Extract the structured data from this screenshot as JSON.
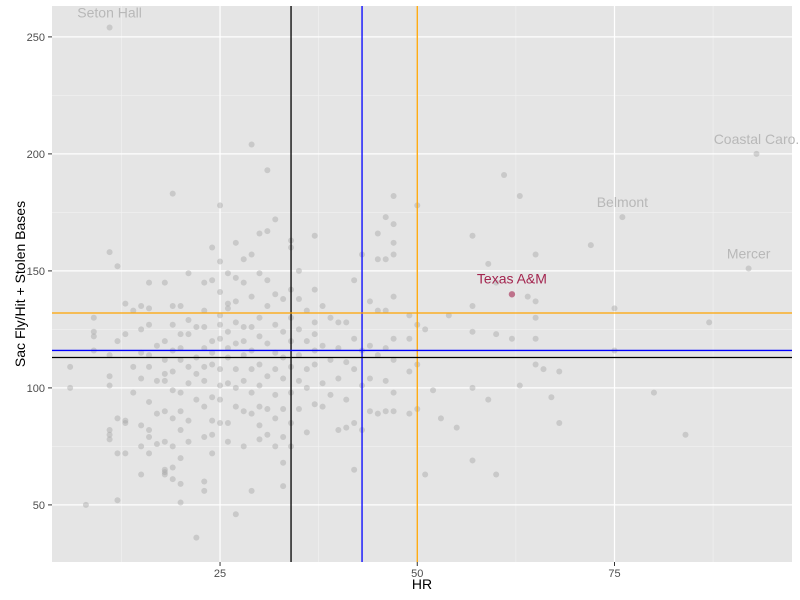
{
  "chart_data": {
    "type": "scatter",
    "title": "",
    "xlabel": "HR",
    "ylabel": "Sac Fly/Hit + Stolen Bases",
    "xlim": [
      3.7,
      97.5
    ],
    "ylim": [
      25.6,
      263.2
    ],
    "x_ticks": [
      25,
      50,
      75
    ],
    "y_ticks": [
      50,
      100,
      150,
      200,
      250
    ],
    "grid": true,
    "colors": {
      "panel_bg": "#e5e5e5",
      "grid_major": "#ffffff",
      "grid_minor": "#f2f2f2",
      "point": "#a6a6a6",
      "label_muted": "#b8b8b8",
      "highlight": "#a3254f"
    },
    "reference_lines": {
      "vertical": [
        {
          "name": "black",
          "x": 34,
          "color": "#000000"
        },
        {
          "name": "blue",
          "x": 43,
          "color": "#0000ff"
        },
        {
          "name": "orange",
          "x": 50,
          "color": "#ffa500"
        }
      ],
      "horizontal": [
        {
          "name": "orange",
          "y": 132,
          "color": "#ffa500"
        },
        {
          "name": "blue",
          "y": 116,
          "color": "#0000ff"
        },
        {
          "name": "black",
          "y": 113,
          "color": "#000000"
        }
      ]
    },
    "highlight": {
      "label": "Texas A&M",
      "x": 62,
      "y": 140
    },
    "labels": [
      {
        "text": "Seton Hall",
        "x": 11,
        "y": 254
      },
      {
        "text": "Coastal Caro.",
        "x": 93,
        "y": 200
      },
      {
        "text": "Belmont",
        "x": 76,
        "y": 173
      },
      {
        "text": "Mercer",
        "x": 92,
        "y": 151
      }
    ],
    "points": [
      [
        11,
        254
      ],
      [
        93,
        200
      ],
      [
        76,
        173
      ],
      [
        92,
        151
      ],
      [
        6,
        109
      ],
      [
        6,
        100
      ],
      [
        8,
        50
      ],
      [
        9,
        130
      ],
      [
        9,
        124
      ],
      [
        9,
        122
      ],
      [
        9,
        116
      ],
      [
        11,
        158
      ],
      [
        11,
        114
      ],
      [
        11,
        105
      ],
      [
        11,
        101
      ],
      [
        11,
        82
      ],
      [
        11,
        80
      ],
      [
        11,
        78
      ],
      [
        12,
        152
      ],
      [
        12,
        120
      ],
      [
        12,
        87
      ],
      [
        12,
        72
      ],
      [
        12,
        52
      ],
      [
        13,
        136
      ],
      [
        13,
        123
      ],
      [
        13,
        86
      ],
      [
        13,
        85
      ],
      [
        13,
        72
      ],
      [
        14,
        133
      ],
      [
        14,
        109
      ],
      [
        14,
        98
      ],
      [
        15,
        135
      ],
      [
        15,
        125
      ],
      [
        15,
        115
      ],
      [
        15,
        104
      ],
      [
        15,
        84
      ],
      [
        15,
        75
      ],
      [
        15,
        63
      ],
      [
        16,
        145
      ],
      [
        16,
        134
      ],
      [
        16,
        127
      ],
      [
        16,
        114
      ],
      [
        16,
        109
      ],
      [
        16,
        94
      ],
      [
        16,
        82
      ],
      [
        16,
        79
      ],
      [
        16,
        72
      ],
      [
        17,
        118
      ],
      [
        17,
        103
      ],
      [
        17,
        89
      ],
      [
        17,
        76
      ],
      [
        18,
        145
      ],
      [
        18,
        120
      ],
      [
        18,
        112
      ],
      [
        18,
        106
      ],
      [
        18,
        103
      ],
      [
        18,
        90
      ],
      [
        18,
        77
      ],
      [
        18,
        65
      ],
      [
        18,
        64
      ],
      [
        18,
        63
      ],
      [
        19,
        183
      ],
      [
        19,
        135
      ],
      [
        19,
        127
      ],
      [
        19,
        116
      ],
      [
        19,
        107
      ],
      [
        19,
        99
      ],
      [
        19,
        87
      ],
      [
        19,
        75
      ],
      [
        19,
        66
      ],
      [
        19,
        61
      ],
      [
        20,
        135
      ],
      [
        20,
        123
      ],
      [
        20,
        117
      ],
      [
        20,
        112
      ],
      [
        20,
        98
      ],
      [
        20,
        90
      ],
      [
        20,
        82
      ],
      [
        20,
        70
      ],
      [
        20,
        59
      ],
      [
        20,
        51
      ],
      [
        21,
        149
      ],
      [
        21,
        129
      ],
      [
        21,
        123
      ],
      [
        21,
        109
      ],
      [
        21,
        102
      ],
      [
        21,
        86
      ],
      [
        21,
        77
      ],
      [
        22,
        126
      ],
      [
        22,
        113
      ],
      [
        22,
        106
      ],
      [
        22,
        95
      ],
      [
        22,
        36
      ],
      [
        23,
        145
      ],
      [
        23,
        133
      ],
      [
        23,
        126
      ],
      [
        23,
        117
      ],
      [
        23,
        109
      ],
      [
        23,
        103
      ],
      [
        23,
        92
      ],
      [
        23,
        79
      ],
      [
        23,
        60
      ],
      [
        23,
        56
      ],
      [
        24,
        160
      ],
      [
        24,
        146
      ],
      [
        24,
        120
      ],
      [
        24,
        115
      ],
      [
        24,
        110
      ],
      [
        24,
        96
      ],
      [
        24,
        86
      ],
      [
        24,
        80
      ],
      [
        24,
        72
      ],
      [
        25,
        178
      ],
      [
        25,
        154
      ],
      [
        25,
        141
      ],
      [
        25,
        131
      ],
      [
        25,
        127
      ],
      [
        25,
        121
      ],
      [
        25,
        108
      ],
      [
        25,
        101
      ],
      [
        25,
        95
      ],
      [
        25,
        85
      ],
      [
        26,
        149
      ],
      [
        26,
        136
      ],
      [
        26,
        134
      ],
      [
        26,
        124
      ],
      [
        26,
        117
      ],
      [
        26,
        113
      ],
      [
        26,
        102
      ],
      [
        26,
        85
      ],
      [
        26,
        77
      ],
      [
        27,
        162
      ],
      [
        27,
        147
      ],
      [
        27,
        137
      ],
      [
        27,
        128
      ],
      [
        27,
        119
      ],
      [
        27,
        108
      ],
      [
        27,
        100
      ],
      [
        27,
        92
      ],
      [
        27,
        46
      ],
      [
        28,
        155
      ],
      [
        28,
        145
      ],
      [
        28,
        126
      ],
      [
        28,
        120
      ],
      [
        28,
        114
      ],
      [
        28,
        103
      ],
      [
        28,
        90
      ],
      [
        28,
        75
      ],
      [
        29,
        204
      ],
      [
        29,
        157
      ],
      [
        29,
        139
      ],
      [
        29,
        126
      ],
      [
        29,
        116
      ],
      [
        29,
        108
      ],
      [
        29,
        98
      ],
      [
        29,
        89
      ],
      [
        29,
        56
      ],
      [
        30,
        166
      ],
      [
        30,
        149
      ],
      [
        30,
        130
      ],
      [
        30,
        122
      ],
      [
        30,
        110
      ],
      [
        30,
        101
      ],
      [
        30,
        92
      ],
      [
        30,
        84
      ],
      [
        30,
        78
      ],
      [
        31,
        193
      ],
      [
        31,
        167
      ],
      [
        31,
        146
      ],
      [
        31,
        135
      ],
      [
        31,
        119
      ],
      [
        31,
        105
      ],
      [
        31,
        91
      ],
      [
        31,
        80
      ],
      [
        32,
        172
      ],
      [
        32,
        140
      ],
      [
        32,
        127
      ],
      [
        32,
        115
      ],
      [
        32,
        108
      ],
      [
        32,
        97
      ],
      [
        32,
        87
      ],
      [
        32,
        75
      ],
      [
        33,
        138
      ],
      [
        33,
        124
      ],
      [
        33,
        113
      ],
      [
        33,
        104
      ],
      [
        33,
        91
      ],
      [
        33,
        79
      ],
      [
        33,
        68
      ],
      [
        33,
        58
      ],
      [
        34,
        163
      ],
      [
        34,
        160
      ],
      [
        34,
        142
      ],
      [
        34,
        130
      ],
      [
        34,
        120
      ],
      [
        34,
        109
      ],
      [
        34,
        98
      ],
      [
        34,
        85
      ],
      [
        34,
        75
      ],
      [
        35,
        150
      ],
      [
        35,
        138
      ],
      [
        35,
        125
      ],
      [
        35,
        114
      ],
      [
        35,
        103
      ],
      [
        35,
        91
      ],
      [
        36,
        133
      ],
      [
        36,
        120
      ],
      [
        36,
        108
      ],
      [
        36,
        100
      ],
      [
        36,
        81
      ],
      [
        37,
        165
      ],
      [
        37,
        142
      ],
      [
        37,
        128
      ],
      [
        37,
        123
      ],
      [
        37,
        116
      ],
      [
        37,
        110
      ],
      [
        37,
        93
      ],
      [
        38,
        135
      ],
      [
        38,
        118
      ],
      [
        38,
        102
      ],
      [
        38,
        92
      ],
      [
        39,
        130
      ],
      [
        39,
        112
      ],
      [
        39,
        97
      ],
      [
        40,
        128
      ],
      [
        40,
        117
      ],
      [
        40,
        104
      ],
      [
        40,
        82
      ],
      [
        41,
        128
      ],
      [
        41,
        111
      ],
      [
        41,
        95
      ],
      [
        41,
        83
      ],
      [
        42,
        146
      ],
      [
        42,
        121
      ],
      [
        42,
        108
      ],
      [
        42,
        85
      ],
      [
        42,
        65
      ],
      [
        43,
        157
      ],
      [
        43,
        116
      ],
      [
        43,
        101
      ],
      [
        43,
        82
      ],
      [
        44,
        137
      ],
      [
        44,
        118
      ],
      [
        44,
        104
      ],
      [
        44,
        90
      ],
      [
        45,
        155
      ],
      [
        45,
        166
      ],
      [
        45,
        133
      ],
      [
        45,
        114
      ],
      [
        45,
        89
      ],
      [
        46,
        173
      ],
      [
        46,
        155
      ],
      [
        46,
        133
      ],
      [
        46,
        117
      ],
      [
        46,
        103
      ],
      [
        46,
        90
      ],
      [
        47,
        182
      ],
      [
        47,
        170
      ],
      [
        47,
        162
      ],
      [
        47,
        157
      ],
      [
        47,
        139
      ],
      [
        47,
        121
      ],
      [
        47,
        112
      ],
      [
        47,
        98
      ],
      [
        47,
        90
      ],
      [
        49,
        131
      ],
      [
        49,
        121
      ],
      [
        49,
        107
      ],
      [
        49,
        89
      ],
      [
        50,
        178
      ],
      [
        50,
        127
      ],
      [
        50,
        110
      ],
      [
        50,
        91
      ],
      [
        51,
        125
      ],
      [
        51,
        63
      ],
      [
        52,
        99
      ],
      [
        53,
        87
      ],
      [
        54,
        131
      ],
      [
        55,
        83
      ],
      [
        57,
        165
      ],
      [
        57,
        135
      ],
      [
        57,
        124
      ],
      [
        57,
        100
      ],
      [
        57,
        69
      ],
      [
        59,
        153
      ],
      [
        59,
        95
      ],
      [
        60,
        145
      ],
      [
        60,
        123
      ],
      [
        60,
        63
      ],
      [
        61,
        191
      ],
      [
        62,
        121
      ],
      [
        63,
        182
      ],
      [
        63,
        101
      ],
      [
        64,
        139
      ],
      [
        65,
        157
      ],
      [
        65,
        137
      ],
      [
        65,
        130
      ],
      [
        65,
        121
      ],
      [
        65,
        110
      ],
      [
        66,
        108
      ],
      [
        67,
        96
      ],
      [
        68,
        107
      ],
      [
        68,
        85
      ],
      [
        72,
        161
      ],
      [
        75,
        134
      ],
      [
        75,
        116
      ],
      [
        80,
        98
      ],
      [
        84,
        80
      ],
      [
        87,
        128
      ]
    ]
  }
}
